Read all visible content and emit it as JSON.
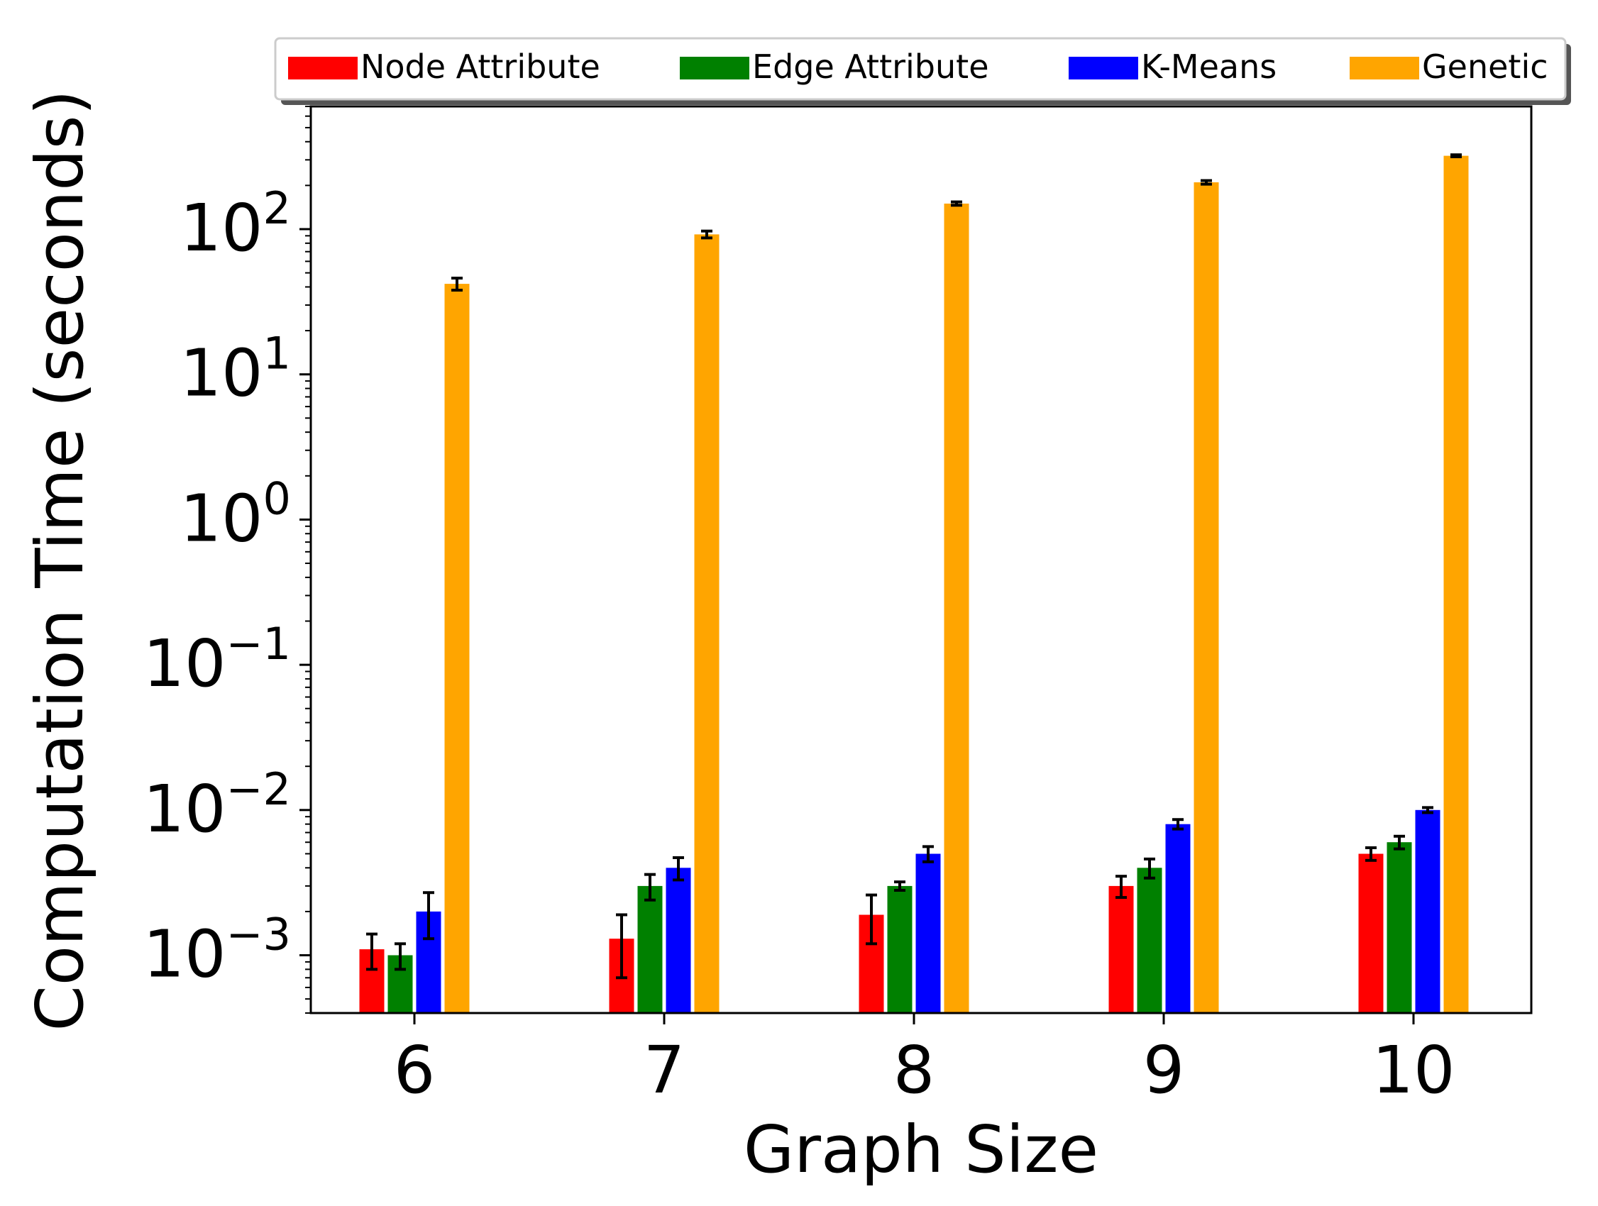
{
  "chart_data": {
    "type": "bar",
    "scale": "log",
    "xlabel": "Graph Size",
    "ylabel": "Computation Time (seconds)",
    "categories": [
      "6",
      "7",
      "8",
      "9",
      "10"
    ],
    "ylim": [
      0.0004,
      700
    ],
    "yticks": [
      {
        "value": 0.001,
        "base": "10",
        "exp": "−3"
      },
      {
        "value": 0.01,
        "base": "10",
        "exp": "−2"
      },
      {
        "value": 0.1,
        "base": "10",
        "exp": "−1"
      },
      {
        "value": 1,
        "base": "10",
        "exp": "0"
      },
      {
        "value": 10,
        "base": "10",
        "exp": "1"
      },
      {
        "value": 100,
        "base": "10",
        "exp": "2"
      }
    ],
    "legend_position": "top",
    "series": [
      {
        "name": "Node Attribute",
        "color": "#ff0000",
        "values": [
          0.0011,
          0.0013,
          0.0019,
          0.003,
          0.005
        ],
        "errors": [
          0.0003,
          0.0006,
          0.0007,
          0.0005,
          0.0005
        ]
      },
      {
        "name": "Edge Attribute",
        "color": "#008000",
        "values": [
          0.001,
          0.003,
          0.003,
          0.004,
          0.006
        ],
        "errors": [
          0.0002,
          0.0006,
          0.0002,
          0.0006,
          0.0006
        ]
      },
      {
        "name": "K-Means",
        "color": "#0000ff",
        "values": [
          0.002,
          0.004,
          0.005,
          0.008,
          0.01
        ],
        "errors": [
          0.0007,
          0.0007,
          0.0006,
          0.0006,
          0.0004
        ]
      },
      {
        "name": "Genetic",
        "color": "#ffa500",
        "values": [
          42,
          92,
          150,
          210,
          320
        ],
        "errors": [
          4,
          5,
          4,
          6,
          5
        ]
      }
    ]
  }
}
